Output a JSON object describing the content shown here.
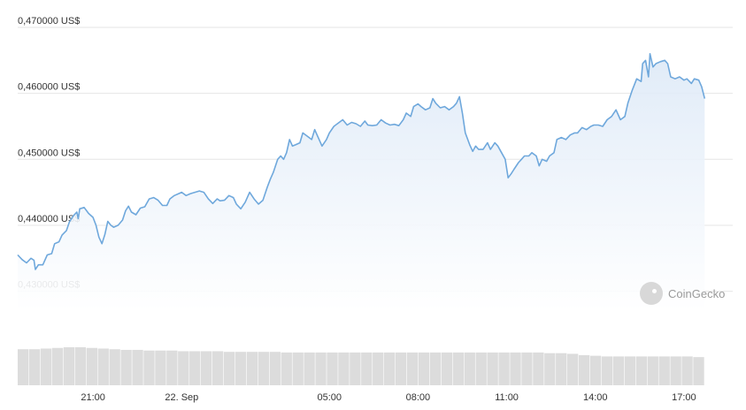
{
  "chart_data": {
    "type": "area",
    "currency": "US$",
    "colors": {
      "line": "#6fa8dc",
      "fill_top": "#dde9f7",
      "fill_bottom": "#ffffff",
      "volume": "#dcdcdc"
    },
    "ylim": [
      0.427,
      0.4712
    ],
    "y_ticks": [
      {
        "value": 0.43,
        "label": "0,430000 US$"
      },
      {
        "value": 0.44,
        "label": "0,440000 US$"
      },
      {
        "value": 0.45,
        "label": "0,450000 US$"
      },
      {
        "value": 0.46,
        "label": "0,460000 US$"
      },
      {
        "value": 0.47,
        "label": "0,470000 US$"
      }
    ],
    "x_range": [
      18.45,
      42.65
    ],
    "x_ticks": [
      {
        "value": 21,
        "label": "21:00"
      },
      {
        "value": 24,
        "label": "22. Sep"
      },
      {
        "value": 29,
        "label": "05:00"
      },
      {
        "value": 32,
        "label": "08:00"
      },
      {
        "value": 35,
        "label": "11:00"
      },
      {
        "value": 38,
        "label": "14:00"
      },
      {
        "value": 41,
        "label": "17:00"
      }
    ],
    "series": [
      {
        "values": [
          [
            18.45,
            0.4355
          ],
          [
            18.6,
            0.4348
          ],
          [
            18.75,
            0.4343
          ],
          [
            18.9,
            0.435
          ],
          [
            19.0,
            0.4347
          ],
          [
            19.05,
            0.4333
          ],
          [
            19.15,
            0.434
          ],
          [
            19.3,
            0.434
          ],
          [
            19.45,
            0.4355
          ],
          [
            19.6,
            0.4357
          ],
          [
            19.7,
            0.4372
          ],
          [
            19.85,
            0.4375
          ],
          [
            19.95,
            0.4385
          ],
          [
            20.1,
            0.4392
          ],
          [
            20.2,
            0.4405
          ],
          [
            20.35,
            0.4415
          ],
          [
            20.45,
            0.442
          ],
          [
            20.5,
            0.441
          ],
          [
            20.55,
            0.4425
          ],
          [
            20.7,
            0.4427
          ],
          [
            20.85,
            0.4418
          ],
          [
            21.0,
            0.4412
          ],
          [
            21.1,
            0.44
          ],
          [
            21.2,
            0.4382
          ],
          [
            21.3,
            0.4372
          ],
          [
            21.4,
            0.4386
          ],
          [
            21.5,
            0.4406
          ],
          [
            21.6,
            0.44
          ],
          [
            21.7,
            0.4397
          ],
          [
            21.85,
            0.44
          ],
          [
            22.0,
            0.4408
          ],
          [
            22.1,
            0.4422
          ],
          [
            22.2,
            0.4429
          ],
          [
            22.3,
            0.442
          ],
          [
            22.45,
            0.4416
          ],
          [
            22.6,
            0.4426
          ],
          [
            22.75,
            0.4428
          ],
          [
            22.9,
            0.444
          ],
          [
            23.05,
            0.4442
          ],
          [
            23.2,
            0.4438
          ],
          [
            23.35,
            0.443
          ],
          [
            23.5,
            0.443
          ],
          [
            23.6,
            0.444
          ],
          [
            23.75,
            0.4445
          ],
          [
            23.9,
            0.4448
          ],
          [
            24.0,
            0.445
          ],
          [
            24.15,
            0.4445
          ],
          [
            24.3,
            0.4448
          ],
          [
            24.45,
            0.445
          ],
          [
            24.6,
            0.4452
          ],
          [
            24.75,
            0.445
          ],
          [
            24.9,
            0.444
          ],
          [
            25.05,
            0.4433
          ],
          [
            25.2,
            0.444
          ],
          [
            25.3,
            0.4437
          ],
          [
            25.45,
            0.4438
          ],
          [
            25.6,
            0.4445
          ],
          [
            25.75,
            0.4442
          ],
          [
            25.85,
            0.4432
          ],
          [
            26.0,
            0.4425
          ],
          [
            26.15,
            0.4435
          ],
          [
            26.3,
            0.445
          ],
          [
            26.45,
            0.444
          ],
          [
            26.6,
            0.4432
          ],
          [
            26.75,
            0.4438
          ],
          [
            26.9,
            0.4458
          ],
          [
            27.0,
            0.447
          ],
          [
            27.1,
            0.448
          ],
          [
            27.25,
            0.45
          ],
          [
            27.35,
            0.4505
          ],
          [
            27.45,
            0.45
          ],
          [
            27.55,
            0.451
          ],
          [
            27.65,
            0.453
          ],
          [
            27.75,
            0.452
          ],
          [
            27.85,
            0.4522
          ],
          [
            28.0,
            0.4525
          ],
          [
            28.1,
            0.454
          ],
          [
            28.25,
            0.4535
          ],
          [
            28.4,
            0.453
          ],
          [
            28.5,
            0.4545
          ],
          [
            28.6,
            0.4535
          ],
          [
            28.75,
            0.452
          ],
          [
            28.9,
            0.453
          ],
          [
            29.0,
            0.454
          ],
          [
            29.15,
            0.455
          ],
          [
            29.3,
            0.4555
          ],
          [
            29.45,
            0.456
          ],
          [
            29.6,
            0.4552
          ],
          [
            29.75,
            0.4556
          ],
          [
            29.9,
            0.4554
          ],
          [
            30.05,
            0.455
          ],
          [
            30.2,
            0.4558
          ],
          [
            30.3,
            0.4552
          ],
          [
            30.45,
            0.4551
          ],
          [
            30.6,
            0.4552
          ],
          [
            30.75,
            0.456
          ],
          [
            30.9,
            0.4555
          ],
          [
            31.05,
            0.4552
          ],
          [
            31.2,
            0.4553
          ],
          [
            31.35,
            0.4551
          ],
          [
            31.5,
            0.456
          ],
          [
            31.6,
            0.457
          ],
          [
            31.75,
            0.4565
          ],
          [
            31.85,
            0.458
          ],
          [
            32.0,
            0.4584
          ],
          [
            32.1,
            0.458
          ],
          [
            32.25,
            0.4575
          ],
          [
            32.4,
            0.4578
          ],
          [
            32.5,
            0.4592
          ],
          [
            32.6,
            0.4585
          ],
          [
            32.75,
            0.4578
          ],
          [
            32.9,
            0.458
          ],
          [
            33.05,
            0.4575
          ],
          [
            33.2,
            0.458
          ],
          [
            33.3,
            0.4585
          ],
          [
            33.4,
            0.4595
          ],
          [
            33.5,
            0.457
          ],
          [
            33.6,
            0.454
          ],
          [
            33.75,
            0.4522
          ],
          [
            33.85,
            0.4512
          ],
          [
            33.95,
            0.452
          ],
          [
            34.05,
            0.4515
          ],
          [
            34.2,
            0.4515
          ],
          [
            34.35,
            0.4525
          ],
          [
            34.45,
            0.4515
          ],
          [
            34.6,
            0.4525
          ],
          [
            34.7,
            0.452
          ],
          [
            34.85,
            0.4508
          ],
          [
            34.95,
            0.45
          ],
          [
            35.05,
            0.4472
          ],
          [
            35.15,
            0.4478
          ],
          [
            35.25,
            0.4485
          ],
          [
            35.4,
            0.4495
          ],
          [
            35.5,
            0.45
          ],
          [
            35.6,
            0.4505
          ],
          [
            35.75,
            0.4505
          ],
          [
            35.85,
            0.451
          ],
          [
            36.0,
            0.4505
          ],
          [
            36.1,
            0.449
          ],
          [
            36.2,
            0.45
          ],
          [
            36.35,
            0.4497
          ],
          [
            36.45,
            0.4505
          ],
          [
            36.6,
            0.451
          ],
          [
            36.7,
            0.453
          ],
          [
            36.85,
            0.4533
          ],
          [
            37.0,
            0.453
          ],
          [
            37.15,
            0.4537
          ],
          [
            37.3,
            0.454
          ],
          [
            37.4,
            0.454
          ],
          [
            37.55,
            0.4548
          ],
          [
            37.7,
            0.4545
          ],
          [
            37.85,
            0.455
          ],
          [
            37.95,
            0.4552
          ],
          [
            38.1,
            0.4552
          ],
          [
            38.25,
            0.455
          ],
          [
            38.4,
            0.456
          ],
          [
            38.55,
            0.4565
          ],
          [
            38.7,
            0.4575
          ],
          [
            38.85,
            0.456
          ],
          [
            39.0,
            0.4565
          ],
          [
            39.1,
            0.4585
          ],
          [
            39.25,
            0.4605
          ],
          [
            39.4,
            0.4622
          ],
          [
            39.55,
            0.4618
          ],
          [
            39.6,
            0.4645
          ],
          [
            39.7,
            0.465
          ],
          [
            39.8,
            0.4625
          ],
          [
            39.85,
            0.466
          ],
          [
            39.95,
            0.464
          ],
          [
            40.05,
            0.4645
          ],
          [
            40.2,
            0.4648
          ],
          [
            40.35,
            0.465
          ],
          [
            40.45,
            0.4645
          ],
          [
            40.55,
            0.4625
          ],
          [
            40.7,
            0.4622
          ],
          [
            40.85,
            0.4625
          ],
          [
            41.0,
            0.462
          ],
          [
            41.1,
            0.4622
          ],
          [
            41.25,
            0.4615
          ],
          [
            41.35,
            0.4622
          ],
          [
            41.5,
            0.462
          ],
          [
            41.6,
            0.461
          ],
          [
            41.7,
            0.4592
          ]
        ]
      }
    ],
    "volume": {
      "values": [
        0.55,
        0.55,
        0.56,
        0.57,
        0.58,
        0.58,
        0.57,
        0.56,
        0.55,
        0.54,
        0.54,
        0.53,
        0.53,
        0.53,
        0.52,
        0.52,
        0.52,
        0.52,
        0.51,
        0.51,
        0.51,
        0.51,
        0.51,
        0.5,
        0.5,
        0.5,
        0.5,
        0.5,
        0.5,
        0.5,
        0.5,
        0.5,
        0.5,
        0.5,
        0.5,
        0.5,
        0.5,
        0.5,
        0.5,
        0.5,
        0.5,
        0.5,
        0.5,
        0.5,
        0.5,
        0.5,
        0.49,
        0.49,
        0.48,
        0.46,
        0.45,
        0.44,
        0.44,
        0.44,
        0.44,
        0.44,
        0.44,
        0.44,
        0.44,
        0.43
      ]
    }
  },
  "watermark": {
    "text": "CoinGecko"
  }
}
